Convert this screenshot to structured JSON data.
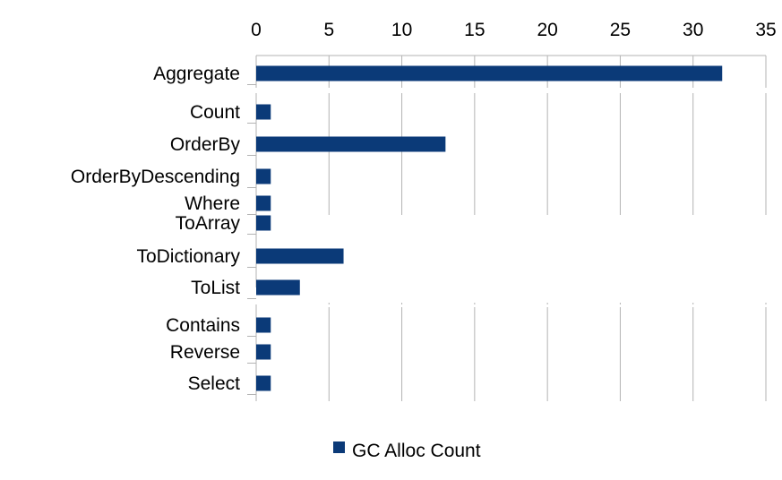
{
  "chart_data": {
    "type": "bar",
    "orientation": "horizontal",
    "x_axis_position": "top",
    "grid": true,
    "xlim": [
      0,
      35
    ],
    "x_ticks": [
      0,
      5,
      10,
      15,
      20,
      25,
      30,
      35
    ],
    "x_tick_labels": [
      "0",
      "5",
      "10",
      "15",
      "20",
      "25",
      "30",
      "35"
    ],
    "categories": [
      "Aggregate",
      "Count",
      "OrderBy",
      "OrderByDescending",
      "Where",
      "ToArray",
      "ToDictionary",
      "ToList",
      "Contains",
      "Reverse",
      "Select"
    ],
    "series": [
      {
        "name": "GC Alloc Count",
        "color": "#0b3a78",
        "values": [
          32,
          1,
          13,
          1,
          1,
          1,
          6,
          3,
          1,
          1,
          1
        ]
      }
    ],
    "legend": {
      "placement": "bottom-center",
      "entries": [
        "GC Alloc Count"
      ]
    }
  }
}
